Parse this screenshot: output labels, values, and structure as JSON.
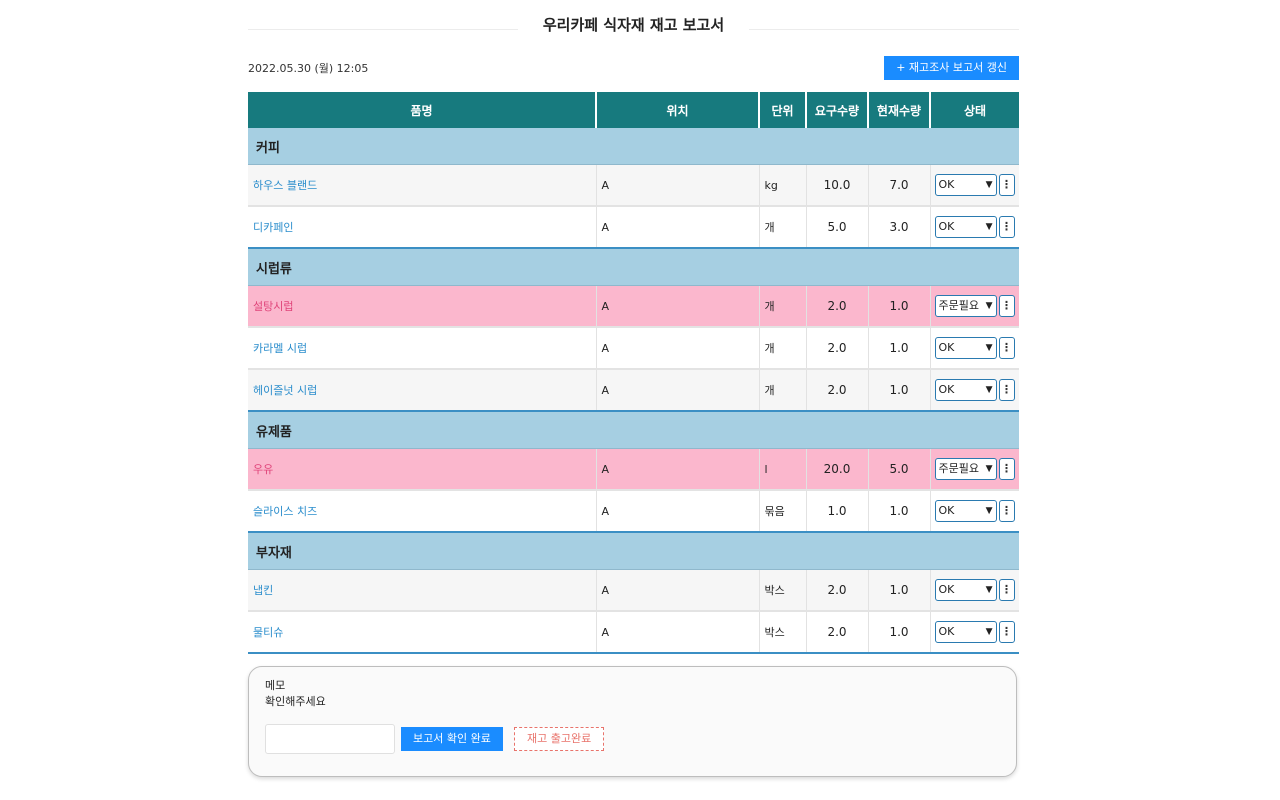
{
  "header": {
    "title": "우리카페 식자재 재고 보고서",
    "date": "2022.05.30 (월) 12:05",
    "refresh_label": "+ 재고조사 보고서 갱신"
  },
  "table": {
    "columns": [
      "품명",
      "위치",
      "단위",
      "요구수량",
      "현재수량",
      "상태"
    ],
    "categories": [
      {
        "name": "커피",
        "items": [
          {
            "name": "하우스 블랜드",
            "location": "A",
            "unit": "kg",
            "required": "10.0",
            "current": "7.0",
            "status": "OK"
          },
          {
            "name": "디카페인",
            "location": "A",
            "unit": "개",
            "required": "5.0",
            "current": "3.0",
            "status": "OK"
          }
        ]
      },
      {
        "name": "시럽류",
        "items": [
          {
            "name": "설탕시럽",
            "location": "A",
            "unit": "개",
            "required": "2.0",
            "current": "1.0",
            "status": "주문필요"
          },
          {
            "name": "카라멜 시럽",
            "location": "A",
            "unit": "개",
            "required": "2.0",
            "current": "1.0",
            "status": "OK"
          },
          {
            "name": "헤이즐넛 시럽",
            "location": "A",
            "unit": "개",
            "required": "2.0",
            "current": "1.0",
            "status": "OK"
          }
        ]
      },
      {
        "name": "유제품",
        "items": [
          {
            "name": "우유",
            "location": "A",
            "unit": "l",
            "required": "20.0",
            "current": "5.0",
            "status": "주문필요"
          },
          {
            "name": "슬라이스 치즈",
            "location": "A",
            "unit": "묶음",
            "required": "1.0",
            "current": "1.0",
            "status": "OK"
          }
        ]
      },
      {
        "name": "부자재",
        "items": [
          {
            "name": "냅킨",
            "location": "A",
            "unit": "박스",
            "required": "2.0",
            "current": "1.0",
            "status": "OK"
          },
          {
            "name": "물티슈",
            "location": "A",
            "unit": "박스",
            "required": "2.0",
            "current": "1.0",
            "status": "OK"
          }
        ]
      }
    ]
  },
  "memo": {
    "label": "메모",
    "text": "확인해주세요",
    "input_value": "",
    "confirm_label": "보고서 확인 완료",
    "done_label": "재고 출고완료"
  },
  "colors": {
    "header_bg": "#177a7e",
    "category_bg": "#a6cfe2",
    "alert_bg": "#fbb7cd",
    "accent": "#1a8cff"
  }
}
